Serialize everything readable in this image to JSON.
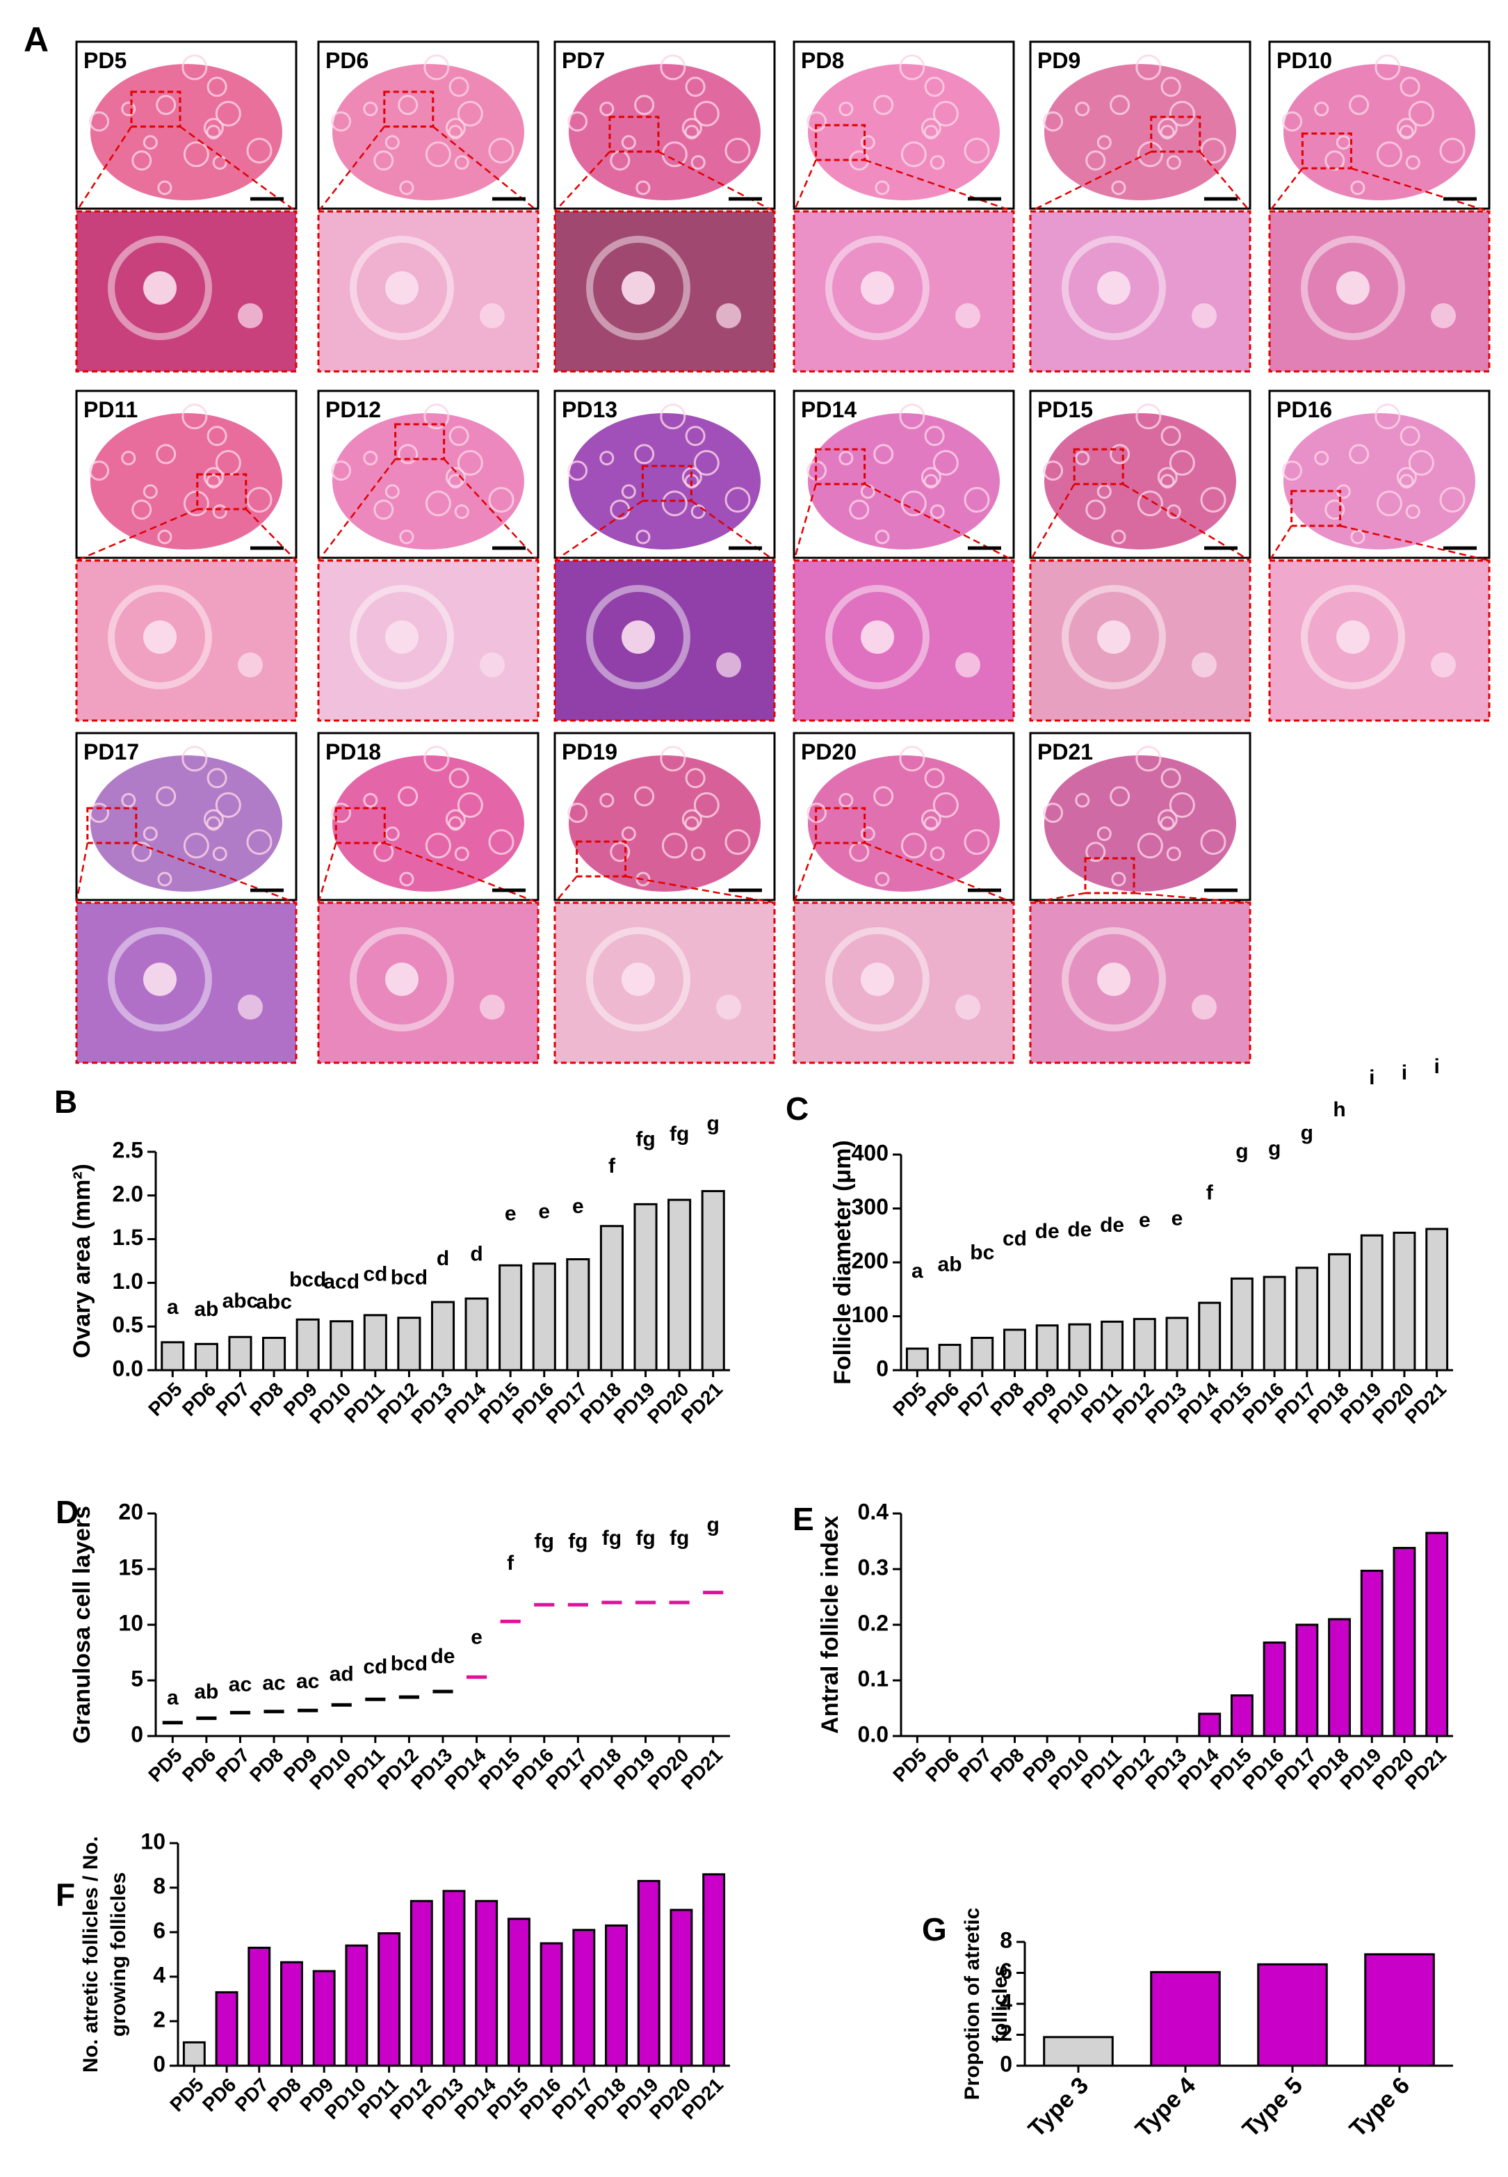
{
  "panel_labels": [
    "A",
    "B",
    "C",
    "D",
    "E",
    "F",
    "G"
  ],
  "histology": {
    "labels": [
      "PD5",
      "PD6",
      "PD7",
      "PD8",
      "PD9",
      "PD10",
      "PD11",
      "PD12",
      "PD13",
      "PD14",
      "PD15",
      "PD16",
      "PD17",
      "PD18",
      "PD19",
      "PD20",
      "PD21"
    ]
  },
  "chart_data": [
    {
      "type": "bar",
      "ylabel": [
        "Ovary  area (mm²)"
      ],
      "categories": [
        "PD5",
        "PD6",
        "PD7",
        "PD8",
        "PD9",
        "PD10",
        "PD11",
        "PD12",
        "PD13",
        "PD14",
        "PD15",
        "PD16",
        "PD17",
        "PD18",
        "PD19",
        "PD20",
        "PD21"
      ],
      "values": [
        0.32,
        0.3,
        0.38,
        0.37,
        0.58,
        0.56,
        0.63,
        0.6,
        0.78,
        0.82,
        1.2,
        1.22,
        1.27,
        1.65,
        1.9,
        1.95,
        2.05
      ],
      "labels": [
        "a",
        "ab",
        "abc",
        "abc",
        "bcd",
        "acd",
        "cd",
        "bcd",
        "d",
        "d",
        "e",
        "e",
        "e",
        "f",
        "fg",
        "fg",
        "g"
      ],
      "color": "#d3d3d3",
      "ylim": [
        0,
        2.5
      ],
      "yticks": [
        {
          "value": 0,
          "label": "0.0"
        },
        0.5,
        {
          "value": 1,
          "label": "1.0"
        },
        1.5,
        {
          "value": 2,
          "label": "2.0"
        },
        2.5
      ]
    },
    {
      "type": "bar",
      "ylabel": [
        "Follicle diameter (μm)"
      ],
      "categories": [
        "PD5",
        "PD6",
        "PD7",
        "PD8",
        "PD9",
        "PD10",
        "PD11",
        "PD12",
        "PD13",
        "PD14",
        "PD15",
        "PD16",
        "PD17",
        "PD18",
        "PD19",
        "PD20",
        "PD21"
      ],
      "values": [
        40,
        47,
        60,
        75,
        83,
        85,
        90,
        95,
        97,
        125,
        170,
        173,
        190,
        215,
        250,
        255,
        262
      ],
      "labels": [
        "a",
        "ab",
        "bc",
        "cd",
        "de",
        "de",
        "de",
        "e",
        "e",
        "f",
        "g",
        "g",
        "g",
        "h",
        "i",
        "i",
        "i"
      ],
      "color": "#d3d3d3",
      "ylim": [
        0,
        400
      ],
      "yticks": [
        0,
        100,
        200,
        300,
        400
      ]
    },
    {
      "type": "dot",
      "ylabel": [
        "Granulosa cell layers"
      ],
      "categories": [
        "PD5",
        "PD6",
        "PD7",
        "PD8",
        "PD9",
        "PD10",
        "PD11",
        "PD12",
        "PD13",
        "PD14",
        "PD15",
        "PD16",
        "PD17",
        "PD18",
        "PD19",
        "PD20",
        "PD21"
      ],
      "values": [
        1.2,
        1.6,
        2.1,
        2.2,
        2.3,
        2.8,
        3.3,
        3.5,
        4.0,
        5.3,
        10.3,
        11.8,
        11.8,
        12.0,
        12.0,
        12.0,
        12.9
      ],
      "labels": [
        "a",
        "ab",
        "ac",
        "ac",
        "ac",
        "ad",
        "cd",
        "bcd",
        "de",
        "e",
        "f",
        "fg",
        "fg",
        "fg",
        "fg",
        "fg",
        "g"
      ],
      "colors": [
        "#000000",
        "#000000",
        "#000000",
        "#000000",
        "#000000",
        "#000000",
        "#000000",
        "#000000",
        "#000000",
        "#e0109a",
        "#e0109a",
        "#e0109a",
        "#e0109a",
        "#e0109a",
        "#e0109a",
        "#e0109a",
        "#e0109a"
      ],
      "ylim": [
        0,
        20
      ],
      "yticks": [
        0,
        5,
        10,
        15,
        20
      ]
    },
    {
      "type": "bar",
      "ylabel": [
        "Antral follicle index"
      ],
      "categories": [
        "PD5",
        "PD6",
        "PD7",
        "PD8",
        "PD9",
        "PD10",
        "PD11",
        "PD12",
        "PD13",
        "PD14",
        "PD15",
        "PD16",
        "PD17",
        "PD18",
        "PD19",
        "PD20",
        "PD21"
      ],
      "values": [
        0,
        0,
        0,
        0,
        0,
        0,
        0,
        0,
        0,
        0.04,
        0.073,
        0.168,
        0.2,
        0.21,
        0.297,
        0.338,
        0.365
      ],
      "color": "#c800c8",
      "ylim": [
        0,
        0.4
      ],
      "yticks": [
        {
          "value": 0,
          "label": "0.0"
        },
        0.1,
        0.2,
        0.3,
        0.4
      ]
    },
    {
      "type": "bar",
      "ylabel": [
        "No. atretic follicles / No.",
        "growing follicles"
      ],
      "categories": [
        "PD5",
        "PD6",
        "PD7",
        "PD8",
        "PD9",
        "PD10",
        "PD11",
        "PD12",
        "PD13",
        "PD14",
        "PD15",
        "PD16",
        "PD17",
        "PD18",
        "PD19",
        "PD20",
        "PD21"
      ],
      "values": [
        1.05,
        3.3,
        5.3,
        4.65,
        4.25,
        5.4,
        5.95,
        7.4,
        7.85,
        7.4,
        6.6,
        5.5,
        6.1,
        6.3,
        8.3,
        7.0,
        8.6
      ],
      "colors": [
        "#d3d3d3",
        "#c800c8",
        "#c800c8",
        "#c800c8",
        "#c800c8",
        "#c800c8",
        "#c800c8",
        "#c800c8",
        "#c800c8",
        "#c800c8",
        "#c800c8",
        "#c800c8",
        "#c800c8",
        "#c800c8",
        "#c800c8",
        "#c800c8",
        "#c800c8"
      ],
      "ylim": [
        0,
        10
      ],
      "yticks": [
        0,
        2,
        4,
        6,
        8,
        10
      ]
    },
    {
      "type": "bar",
      "ylabel": [
        "Propotion of atretic",
        "follicles"
      ],
      "categories": [
        "Type 3",
        "Type 4",
        "Type 5",
        "Type 6"
      ],
      "values": [
        1.85,
        6.05,
        6.55,
        7.2
      ],
      "colors": [
        "#d3d3d3",
        "#c800c8",
        "#c800c8",
        "#c800c8"
      ],
      "ylim": [
        0,
        8
      ],
      "yticks": [
        0,
        2,
        4,
        6,
        8
      ]
    }
  ]
}
